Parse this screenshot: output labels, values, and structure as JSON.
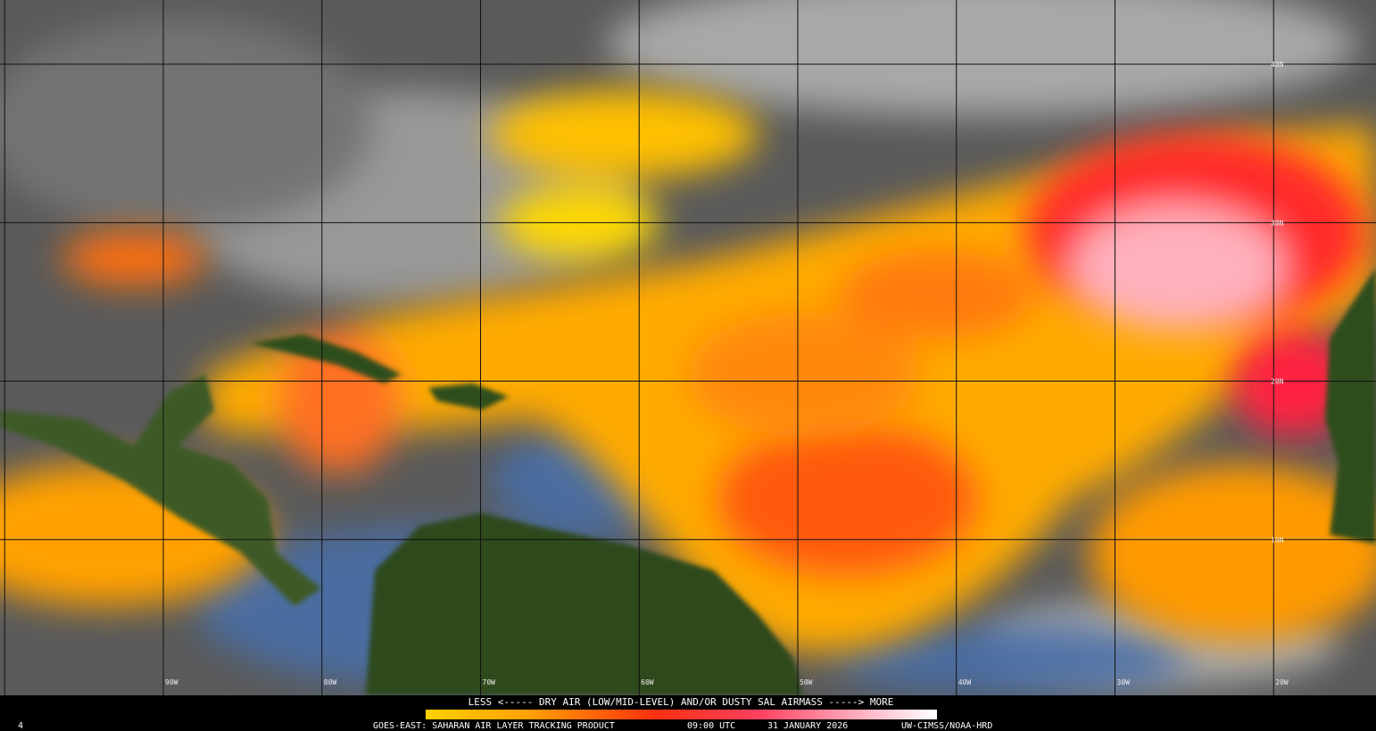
{
  "legend": {
    "caption": "LESS <----- DRY AIR (LOW/MID-LEVEL) AND/OR DUSTY SAL AIRMASS -----> MORE"
  },
  "footer": {
    "frame": "4",
    "product": "GOES-EAST: SAHARAN AIR LAYER TRACKING PRODUCT",
    "time": "09:00 UTC",
    "date": "31 JANUARY 2026",
    "credit": "UW-CIMSS/NOAA-HRD"
  },
  "grid": {
    "latitudes": [
      "40N",
      "30N",
      "20N",
      "10N"
    ],
    "longitudes": [
      "90W",
      "80W",
      "70W",
      "60W",
      "50W",
      "40W",
      "30W",
      "20W"
    ]
  }
}
